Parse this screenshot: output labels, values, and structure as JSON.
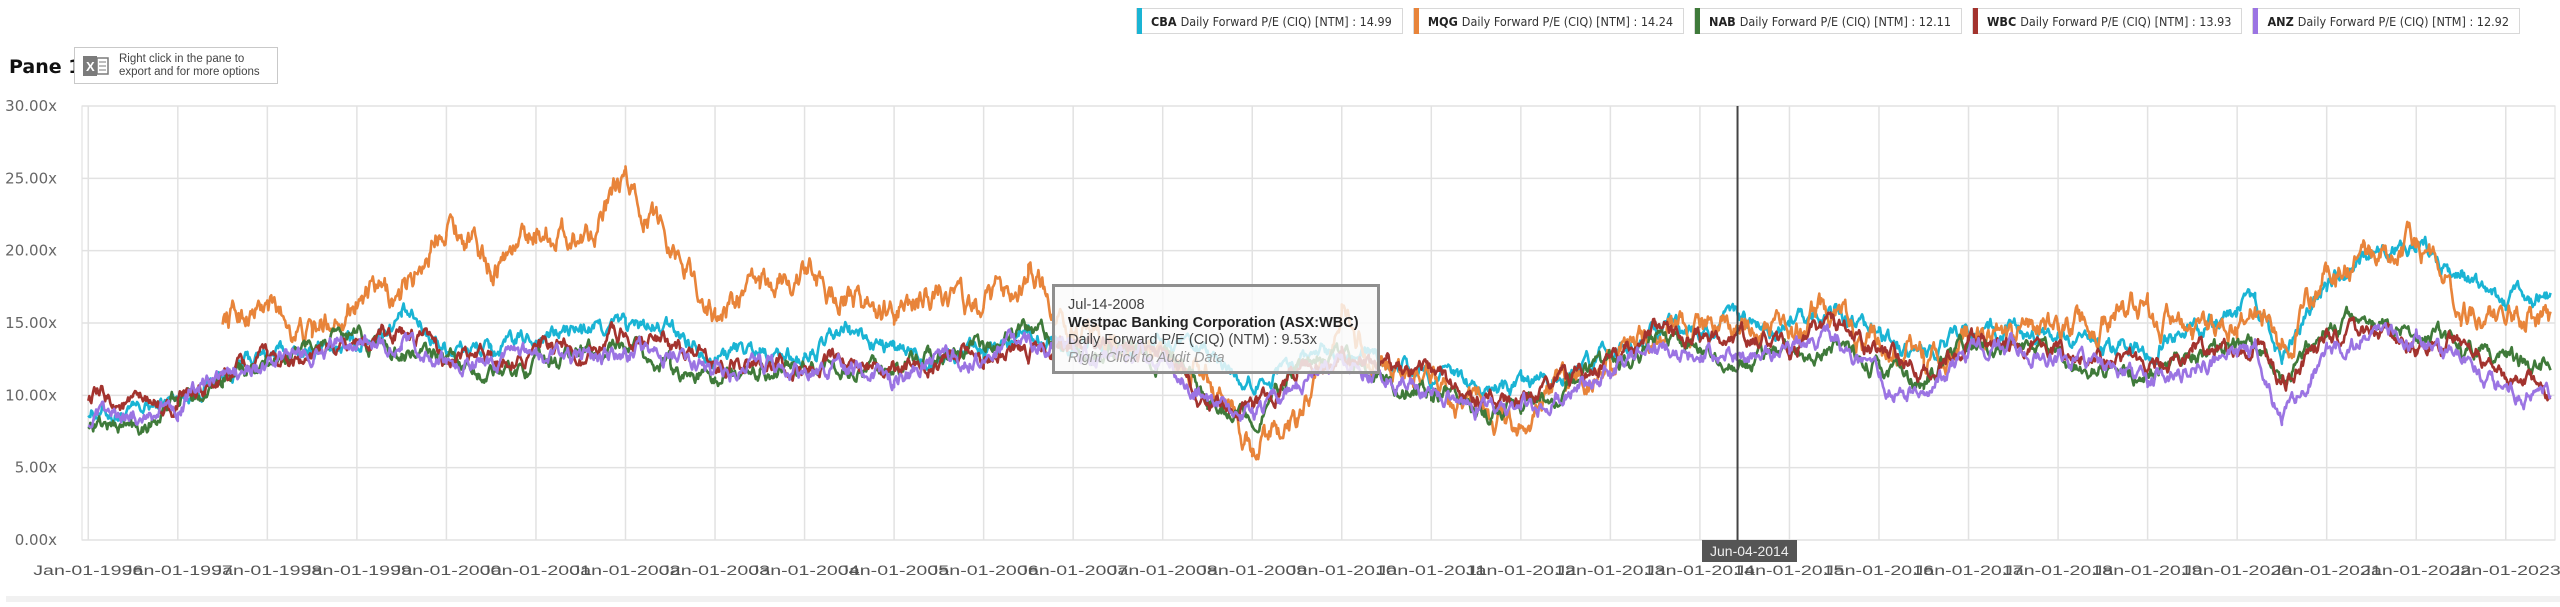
{
  "pane": {
    "title": "Pane 1",
    "export_hint": "Right click in the pane to export and for more options",
    "export_icon": "excel-export-icon"
  },
  "legend": [
    {
      "ticker": "CBA",
      "label": "Daily Forward P/E (CIQ) [NTM] : 14.99",
      "color": "#1ab4d4"
    },
    {
      "ticker": "MQG",
      "label": "Daily Forward P/E (CIQ) [NTM] : 14.24",
      "color": "#e8843a"
    },
    {
      "ticker": "NAB",
      "label": "Daily Forward P/E (CIQ) [NTM] : 12.11",
      "color": "#3f7a3a"
    },
    {
      "ticker": "WBC",
      "label": "Daily Forward P/E (CIQ) [NTM] : 13.93",
      "color": "#a3332e"
    },
    {
      "ticker": "ANZ",
      "label": "Daily Forward P/E (CIQ) [NTM] : 12.92",
      "color": "#9b74e3"
    }
  ],
  "tooltip": {
    "date": "Jul-14-2008",
    "company": "Westpac Banking Corporation (ASX:WBC)",
    "metric": "Daily Forward P/E (CIQ) (NTM) : 9.53x",
    "hint": "Right Click to Audit Data"
  },
  "crosshair": {
    "date": "Jun-04-2014",
    "x_year": 2014.42
  },
  "chart_data": {
    "type": "line",
    "title": "Pane 1",
    "xlabel": "",
    "ylabel": "",
    "ylim": [
      0,
      30
    ],
    "xlim": [
      1995.93,
      2023.55
    ],
    "grid": true,
    "legend_position": "top-right",
    "y_ticks": [
      "0.00x",
      "5.00x",
      "10.00x",
      "15.00x",
      "20.00x",
      "25.00x",
      "30.00x"
    ],
    "y_tick_values": [
      0,
      5,
      10,
      15,
      20,
      25,
      30
    ],
    "x_ticks": [
      "Jan-01-1996",
      "Jan-01-1997",
      "Jan-01-1998",
      "Jan-01-1999",
      "Jan-01-2000",
      "Jan-01-2001",
      "Jan-01-2002",
      "Jan-01-2003",
      "Jan-01-2004",
      "Jan-01-2005",
      "Jan-01-2006",
      "Jan-01-2007",
      "Jan-01-2008",
      "Jan-01-2009",
      "Jan-01-2010",
      "Jan-01-2011",
      "Jan-01-2012",
      "Jan-01-2013",
      "Jan-01-2014",
      "Jan-01-2015",
      "Jan-01-2016",
      "Jan-01-2017",
      "Jan-01-2018",
      "Jan-01-2019",
      "Jan-01-2020",
      "Jan-01-2021",
      "Jan-01-2022",
      "Jan-01-2023"
    ],
    "x_tick_values": [
      1996,
      1997,
      1998,
      1999,
      2000,
      2001,
      2002,
      2003,
      2004,
      2005,
      2006,
      2007,
      2008,
      2009,
      2010,
      2011,
      2012,
      2013,
      2014,
      2015,
      2016,
      2017,
      2018,
      2019,
      2020,
      2021,
      2022,
      2023
    ],
    "x": [
      1996.0,
      1996.5,
      1997.0,
      1997.5,
      1998.0,
      1998.5,
      1999.0,
      1999.5,
      2000.0,
      2000.5,
      2001.0,
      2001.5,
      2002.0,
      2002.5,
      2003.0,
      2003.5,
      2004.0,
      2004.5,
      2005.0,
      2005.5,
      2006.0,
      2006.5,
      2007.0,
      2007.5,
      2008.0,
      2008.5,
      2009.0,
      2009.5,
      2010.0,
      2010.5,
      2011.0,
      2011.5,
      2012.0,
      2012.5,
      2013.0,
      2013.5,
      2014.0,
      2014.5,
      2015.0,
      2015.5,
      2016.0,
      2016.5,
      2017.0,
      2017.5,
      2018.0,
      2018.5,
      2019.0,
      2019.5,
      2020.0,
      2020.2,
      2020.5,
      2021.0,
      2021.5,
      2022.0,
      2022.5,
      2023.0,
      2023.5
    ],
    "series": [
      {
        "name": "CBA Daily Forward P/E (CIQ) [NTM]",
        "color": "#1ab4d4",
        "values": [
          9.0,
          8.6,
          9.8,
          11.5,
          12.8,
          13.0,
          13.5,
          15.5,
          13.5,
          13.0,
          14.0,
          14.5,
          14.8,
          14.5,
          13.0,
          13.2,
          12.5,
          14.5,
          13.0,
          12.8,
          13.2,
          14.5,
          13.5,
          13.5,
          13.5,
          12.5,
          10.8,
          12.5,
          13.5,
          12.0,
          11.5,
          10.5,
          10.2,
          11.5,
          12.8,
          14.8,
          14.5,
          15.0,
          14.7,
          15.8,
          14.0,
          13.0,
          14.5,
          14.5,
          13.8,
          13.0,
          13.5,
          14.5,
          15.5,
          16.5,
          12.5,
          18.0,
          20.0,
          20.5,
          18.0,
          16.5,
          16.7
        ]
      },
      {
        "name": "MQG Daily Forward P/E (CIQ) [NTM]",
        "color": "#e8843a",
        "values": [
          null,
          null,
          null,
          15.5,
          16.0,
          14.0,
          17.0,
          16.5,
          22.5,
          19.0,
          21.5,
          21.0,
          24.5,
          21.0,
          15.5,
          17.5,
          18.5,
          16.5,
          15.5,
          17.5,
          15.5,
          19.0,
          14.0,
          13.5,
          13.0,
          11.0,
          6.5,
          7.5,
          15.0,
          11.0,
          11.0,
          8.0,
          8.0,
          10.5,
          12.5,
          14.8,
          14.5,
          14.5,
          13.8,
          16.5,
          13.0,
          12.5,
          14.0,
          13.5,
          14.2,
          15.5,
          16.0,
          13.5,
          14.5,
          17.0,
          13.0,
          18.5,
          19.5,
          20.5,
          16.5,
          15.5,
          15.0
        ]
      },
      {
        "name": "NAB Daily Forward P/E (CIQ) [NTM]",
        "color": "#3f7a3a",
        "values": [
          8.2,
          7.8,
          9.5,
          11.0,
          12.0,
          13.5,
          14.0,
          13.0,
          12.5,
          11.5,
          12.0,
          13.0,
          13.0,
          12.0,
          11.0,
          12.0,
          12.0,
          12.0,
          11.2,
          13.0,
          13.5,
          14.5,
          13.5,
          13.0,
          12.5,
          10.0,
          8.5,
          12.0,
          12.5,
          11.0,
          10.5,
          9.0,
          9.0,
          10.5,
          12.0,
          13.5,
          13.0,
          12.5,
          13.0,
          13.5,
          12.0,
          11.0,
          13.5,
          13.5,
          12.5,
          12.0,
          11.5,
          12.8,
          13.5,
          13.2,
          11.0,
          15.0,
          15.5,
          14.0,
          13.5,
          12.5,
          12.0
        ]
      },
      {
        "name": "WBC Daily Forward P/E (CIQ) [NTM]",
        "color": "#a3332e",
        "values": [
          10.0,
          9.2,
          9.3,
          11.0,
          12.5,
          12.5,
          13.5,
          14.5,
          12.5,
          12.5,
          13.0,
          13.0,
          14.5,
          13.5,
          12.0,
          12.5,
          12.0,
          12.5,
          12.0,
          12.5,
          13.0,
          13.5,
          13.5,
          13.5,
          13.0,
          9.5,
          9.0,
          11.5,
          12.5,
          11.5,
          11.5,
          9.5,
          9.5,
          11.0,
          12.5,
          14.5,
          14.0,
          14.0,
          13.5,
          15.0,
          13.0,
          11.5,
          14.0,
          13.5,
          13.0,
          12.5,
          12.0,
          13.0,
          13.5,
          14.0,
          10.5,
          14.0,
          14.5,
          13.0,
          14.0,
          11.5,
          10.5
        ]
      },
      {
        "name": "ANZ Daily Forward P/E (CIQ) [NTM]",
        "color": "#9b74e3",
        "values": [
          8.3,
          8.4,
          9.5,
          11.0,
          12.0,
          13.0,
          14.0,
          13.5,
          12.0,
          12.0,
          12.5,
          12.5,
          13.0,
          13.0,
          11.5,
          12.0,
          11.5,
          12.0,
          11.0,
          12.5,
          13.0,
          14.0,
          13.0,
          13.0,
          12.5,
          9.5,
          8.5,
          11.0,
          12.5,
          11.0,
          10.5,
          9.0,
          9.0,
          10.0,
          12.0,
          13.5,
          12.8,
          12.5,
          13.0,
          14.0,
          11.0,
          10.0,
          13.0,
          13.5,
          12.5,
          12.0,
          11.0,
          12.0,
          12.5,
          13.0,
          8.0,
          13.0,
          14.5,
          13.5,
          12.5,
          10.0,
          10.0
        ]
      }
    ]
  }
}
